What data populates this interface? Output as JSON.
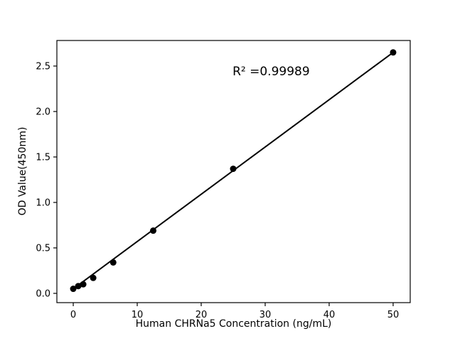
{
  "figure": {
    "background": "#ffffff",
    "foreground": "#000000"
  },
  "chart_data": {
    "type": "scatter",
    "title": "",
    "xlabel": "Human CHRNa5 Concentration (ng/mL)",
    "ylabel": "OD Value(450nm)",
    "annotation": {
      "text": "R² =0.99989",
      "x": 24.9,
      "y": 2.44
    },
    "x": [
      0,
      0.78,
      1.56,
      3.12,
      6.25,
      12.5,
      25,
      50
    ],
    "y": [
      0.05,
      0.08,
      0.1,
      0.17,
      0.34,
      0.69,
      1.37,
      2.65
    ],
    "fit_line": {
      "x1": 0,
      "y1": 0.05,
      "x2": 50,
      "y2": 2.65,
      "r_squared": 0.99989
    },
    "xticks": [
      0,
      10,
      20,
      30,
      40,
      50
    ],
    "xtick_labels": [
      "0",
      "10",
      "20",
      "30",
      "40",
      "50"
    ],
    "yticks": [
      0,
      0.5,
      1.0,
      1.5,
      2.0,
      2.5
    ],
    "ytick_labels": [
      "0.0",
      "0.5",
      "1.0",
      "1.5",
      "2.0",
      "2.5"
    ],
    "xlim": [
      -2.56,
      52.67
    ],
    "ylim": [
      -0.102,
      2.781
    ],
    "grid": false,
    "legend": null,
    "marker_color": "#000000",
    "line_color": "#000000"
  }
}
